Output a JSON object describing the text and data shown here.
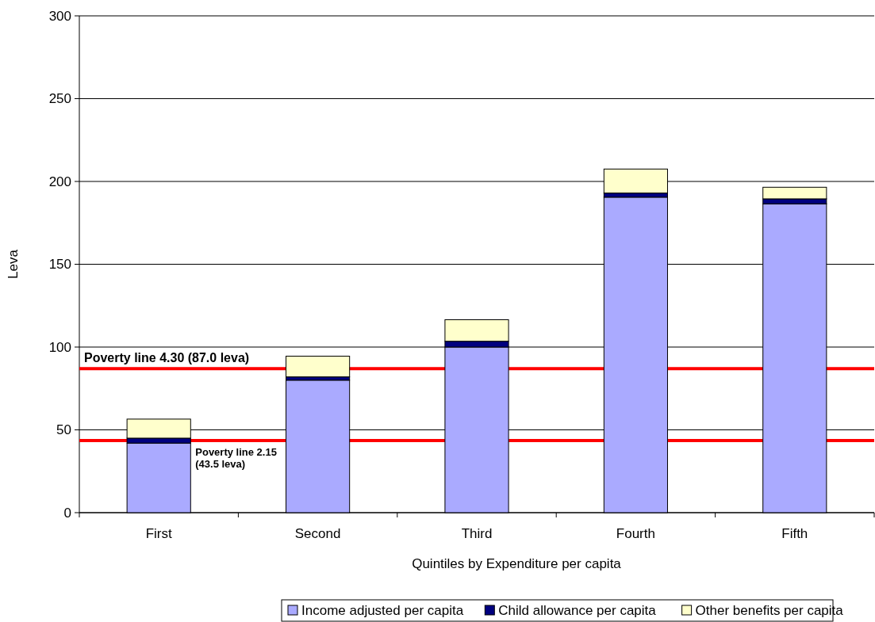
{
  "chart_data": {
    "type": "bar",
    "stacked": true,
    "xlabel": "Quintiles  by Expenditure per capita",
    "ylabel": "Leva",
    "categories": [
      "First",
      "Second",
      "Third",
      "Fourth",
      "Fifth"
    ],
    "series": [
      {
        "name": "Income adjusted per capita",
        "color": "#aaaaff",
        "values": [
          42,
          80,
          100,
          190.5,
          186.5
        ]
      },
      {
        "name": "Child allowance per capita",
        "color": "#000080",
        "values": [
          3,
          2,
          3.5,
          2.5,
          3
        ]
      },
      {
        "name": "Other benefits per capita",
        "color": "#ffffcc",
        "values": [
          11.5,
          12.5,
          13,
          14.5,
          7
        ]
      }
    ],
    "ylim": [
      0,
      300
    ],
    "yticks": [
      0,
      50,
      100,
      150,
      200,
      250,
      300
    ],
    "grid": "y",
    "legend": "bottom",
    "ref_lines": [
      {
        "axis": "y",
        "value": 87,
        "label": "Poverty line 4.30 (87.0 leva)",
        "color": "#ff0000"
      },
      {
        "axis": "y",
        "value": 43.5,
        "label": "Poverty line 2.15 (43.5 leva)",
        "color": "#ff0000"
      }
    ]
  }
}
